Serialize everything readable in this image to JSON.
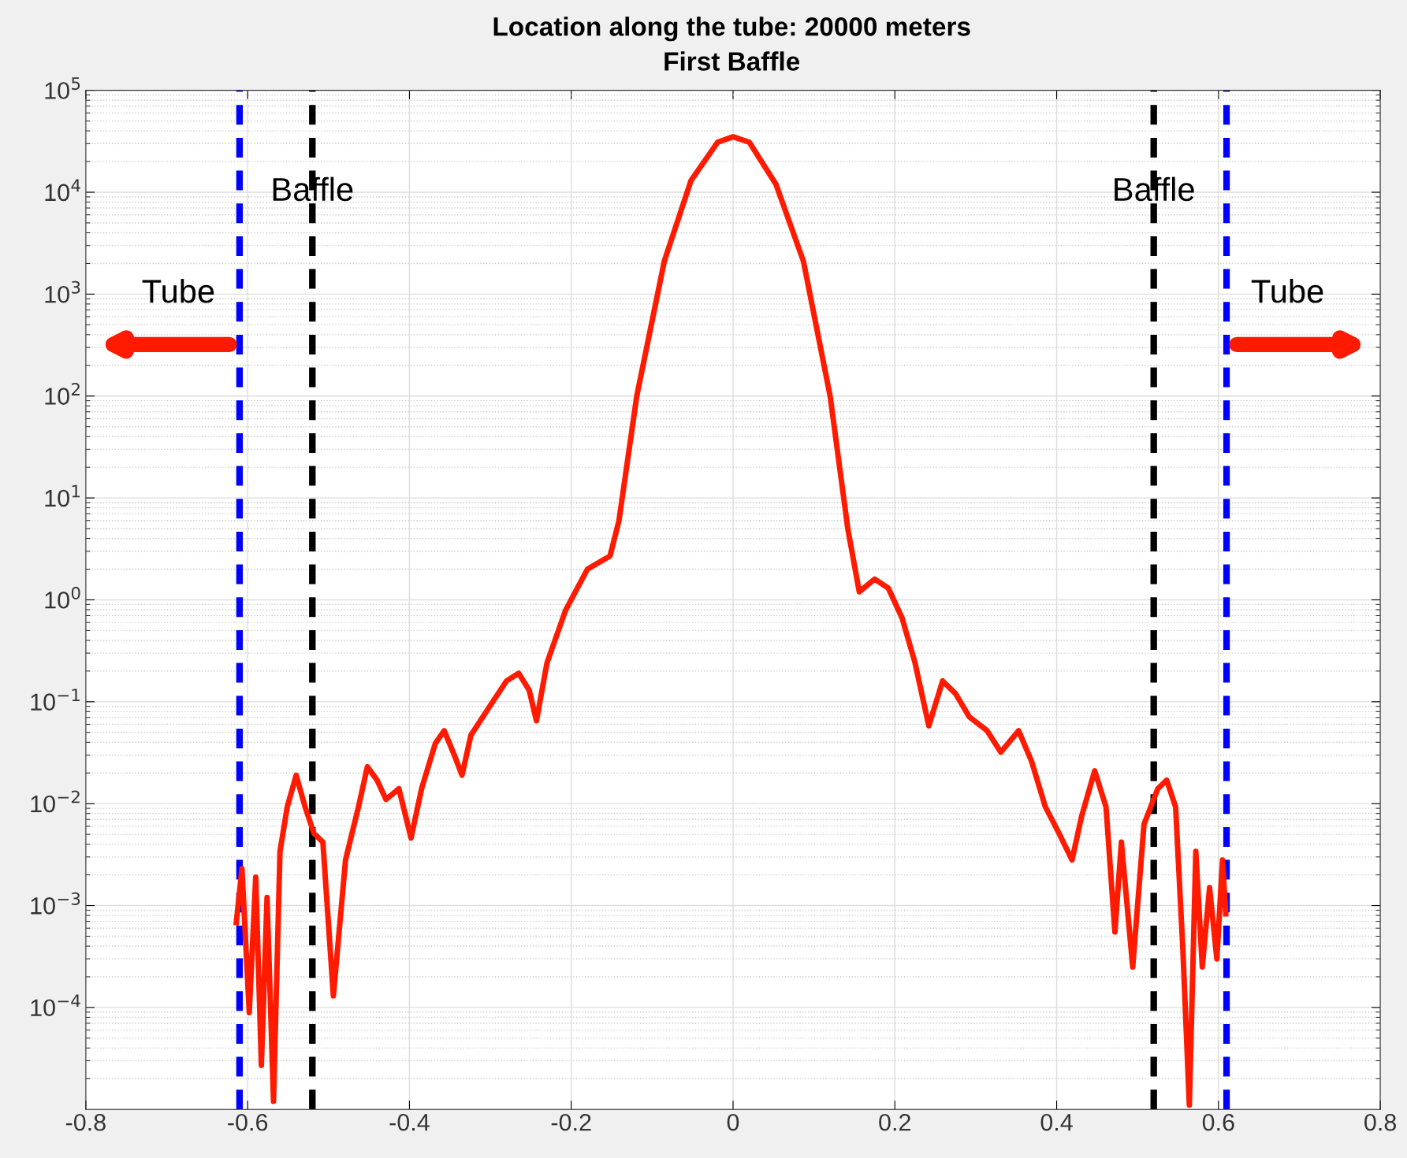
{
  "chart_data": {
    "type": "line",
    "title": "Location along the tube: 20000 meters",
    "subtitle": "First Baffle",
    "log": "y",
    "grid": true,
    "legend": false,
    "marker": "none",
    "line_style": "solid",
    "xlim": [
      -0.8,
      0.8
    ],
    "xticks": [
      -0.8,
      -0.6,
      -0.4,
      -0.2,
      0,
      0.2,
      0.4,
      0.6,
      0.8
    ],
    "ylim": [
      1e-05,
      100000
    ],
    "yticks": [
      {
        "value": 0.0001,
        "label": "10$^{−4}$"
      },
      {
        "value": 0.001,
        "label": "10$^{−3}$"
      },
      {
        "value": 0.01,
        "label": "10$^{−2}$"
      },
      {
        "value": 0.1,
        "label": "10$^{−1}$"
      },
      {
        "value": 1,
        "label": "10$^{0}$"
      },
      {
        "value": 10,
        "label": "10$^{1}$"
      },
      {
        "value": 100,
        "label": "10$^{2}$"
      },
      {
        "value": 1000,
        "label": "10$^{3}$"
      },
      {
        "value": 10000,
        "label": "10$^{4}$"
      },
      {
        "value": 100000,
        "label": "10$^{5}$"
      }
    ],
    "ref_lines": [
      {
        "axis": "x",
        "value": -0.61,
        "label": "Tube",
        "color": "#0000ff",
        "line_style": "dashed"
      },
      {
        "axis": "x",
        "value": -0.52,
        "label": "Baffle",
        "color": "#000000",
        "line_style": "dashed"
      },
      {
        "axis": "x",
        "value": 0.52,
        "label": "Baffle",
        "color": "#000000",
        "line_style": "dashed"
      },
      {
        "axis": "x",
        "value": 0.61,
        "label": "Tube",
        "color": "#0000ff",
        "line_style": "dashed"
      }
    ],
    "series": [
      {
        "color": "#ff1a00",
        "x": [
          -0.614,
          -0.607,
          -0.598,
          -0.59,
          -0.583,
          -0.576,
          -0.568,
          -0.56,
          -0.551,
          -0.54,
          -0.529,
          -0.518,
          -0.507,
          -0.494,
          -0.479,
          -0.463,
          -0.452,
          -0.44,
          -0.429,
          -0.413,
          -0.398,
          -0.385,
          -0.368,
          -0.357,
          -0.346,
          -0.335,
          -0.324,
          -0.302,
          -0.28,
          -0.265,
          -0.252,
          -0.243,
          -0.23,
          -0.207,
          -0.18,
          -0.152,
          -0.141,
          -0.119,
          -0.085,
          -0.052,
          -0.019,
          0,
          0.02,
          0.053,
          0.087,
          0.12,
          0.142,
          0.156,
          0.175,
          0.192,
          0.209,
          0.225,
          0.242,
          0.259,
          0.275,
          0.292,
          0.314,
          0.331,
          0.353,
          0.369,
          0.386,
          0.403,
          0.419,
          0.431,
          0.447,
          0.461,
          0.472,
          0.48,
          0.494,
          0.508,
          0.525,
          0.536,
          0.547,
          0.556,
          0.564,
          0.572,
          0.58,
          0.589,
          0.598,
          0.605,
          0.609
        ],
        "values": [
          0.00068,
          0.0023,
          8.9e-05,
          0.0019,
          2.7e-05,
          0.0012,
          1.2e-05,
          0.0034,
          0.0093,
          0.019,
          0.0093,
          0.0051,
          0.0042,
          0.00013,
          0.0028,
          0.0093,
          0.023,
          0.017,
          0.011,
          0.014,
          0.0046,
          0.014,
          0.039,
          0.052,
          0.032,
          0.019,
          0.047,
          0.087,
          0.16,
          0.19,
          0.13,
          0.065,
          0.24,
          0.79,
          2.0,
          2.7,
          6.0,
          100,
          2100,
          13000,
          31000,
          35000,
          31000,
          12000,
          2100,
          100,
          4.9,
          1.2,
          1.6,
          1.3,
          0.66,
          0.24,
          0.058,
          0.16,
          0.12,
          0.071,
          0.052,
          0.032,
          0.052,
          0.026,
          0.0093,
          0.0051,
          0.0028,
          0.0076,
          0.021,
          0.0093,
          0.00055,
          0.0042,
          0.00025,
          0.0063,
          0.014,
          0.017,
          0.0093,
          0.00037,
          1.1e-05,
          0.0034,
          0.00025,
          0.0015,
          0.0003,
          0.0028,
          0.00083
        ]
      }
    ]
  }
}
